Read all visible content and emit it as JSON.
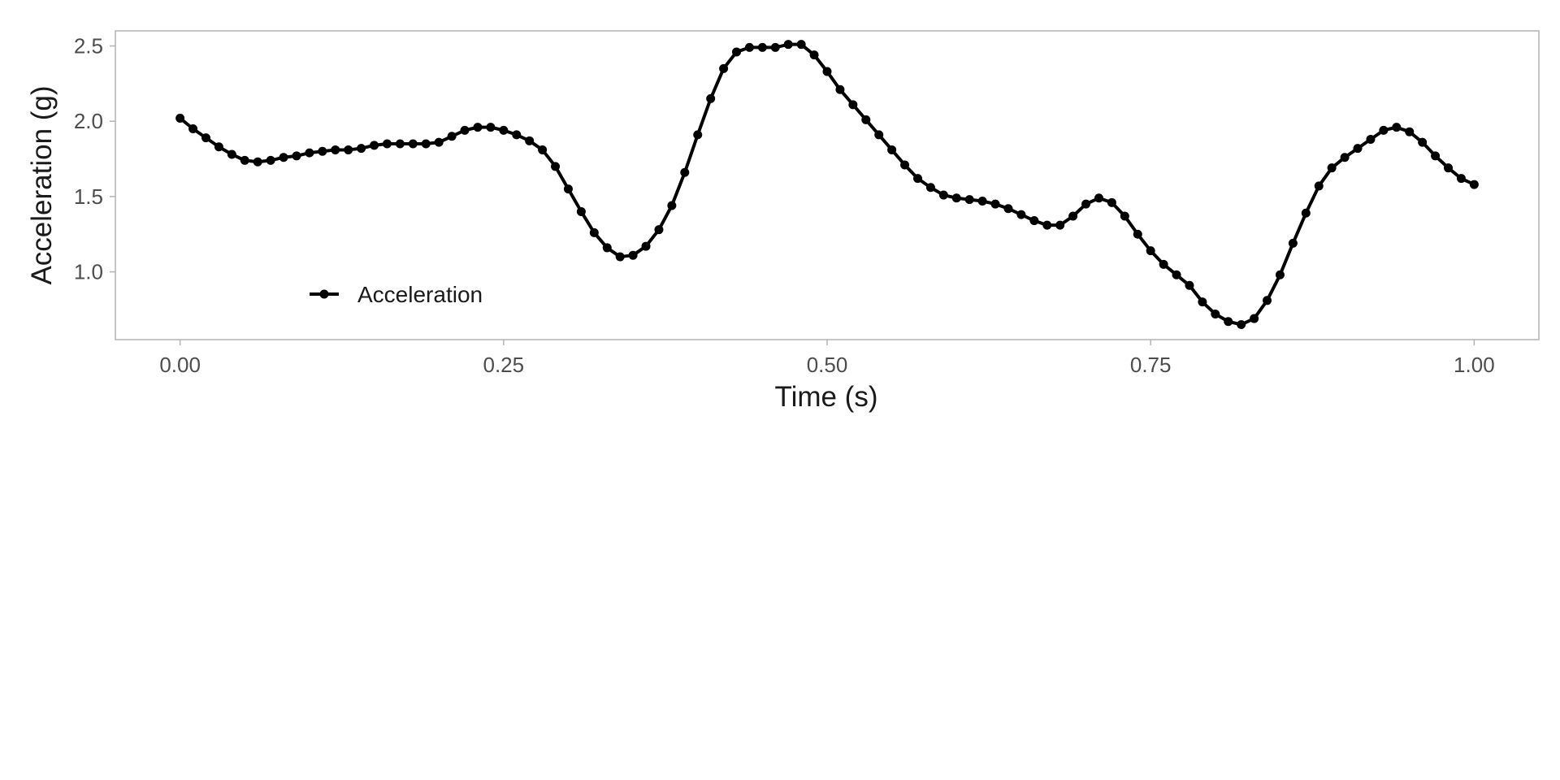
{
  "chart_data": {
    "type": "line",
    "title": "",
    "xlabel": "Time (s)",
    "ylabel": "Acceleration (g)",
    "xlim": [
      -0.05,
      1.05
    ],
    "ylim": [
      0.55,
      2.6
    ],
    "x_ticks": [
      "0.00",
      "0.25",
      "0.50",
      "0.75",
      "1.00"
    ],
    "x_tick_values": [
      0,
      0.25,
      0.5,
      0.75,
      1.0
    ],
    "y_ticks": [
      "1.0",
      "1.5",
      "2.0",
      "2.5"
    ],
    "y_tick_values": [
      1.0,
      1.5,
      2.0,
      2.5
    ],
    "grid": false,
    "legend_position": "bottom-left inside",
    "series": [
      {
        "name": "Acceleration",
        "color": "#000000",
        "marker": "circle",
        "x": [
          0.0,
          0.01,
          0.02,
          0.03,
          0.04,
          0.05,
          0.06,
          0.07,
          0.08,
          0.09,
          0.1,
          0.11,
          0.12,
          0.13,
          0.14,
          0.15,
          0.16,
          0.17,
          0.18,
          0.19,
          0.2,
          0.21,
          0.22,
          0.23,
          0.24,
          0.25,
          0.26,
          0.27,
          0.28,
          0.29,
          0.3,
          0.31,
          0.32,
          0.33,
          0.34,
          0.35,
          0.36,
          0.37,
          0.38,
          0.39,
          0.4,
          0.41,
          0.42,
          0.43,
          0.44,
          0.45,
          0.46,
          0.47,
          0.48,
          0.49,
          0.5,
          0.51,
          0.52,
          0.53,
          0.54,
          0.55,
          0.56,
          0.57,
          0.58,
          0.59,
          0.6,
          0.61,
          0.62,
          0.63,
          0.64,
          0.65,
          0.66,
          0.67,
          0.68,
          0.69,
          0.7,
          0.71,
          0.72,
          0.73,
          0.74,
          0.75,
          0.76,
          0.77,
          0.78,
          0.79,
          0.8,
          0.81,
          0.82,
          0.83,
          0.84,
          0.85,
          0.86,
          0.87,
          0.88,
          0.89,
          0.9,
          0.91,
          0.92,
          0.93,
          0.94,
          0.95,
          0.96,
          0.97,
          0.98,
          0.99,
          1.0
        ],
        "y": [
          2.02,
          1.95,
          1.89,
          1.83,
          1.78,
          1.74,
          1.73,
          1.74,
          1.76,
          1.77,
          1.79,
          1.8,
          1.81,
          1.81,
          1.82,
          1.84,
          1.85,
          1.85,
          1.85,
          1.85,
          1.86,
          1.9,
          1.94,
          1.96,
          1.96,
          1.94,
          1.91,
          1.87,
          1.81,
          1.7,
          1.55,
          1.4,
          1.26,
          1.16,
          1.1,
          1.11,
          1.17,
          1.28,
          1.44,
          1.66,
          1.91,
          2.15,
          2.35,
          2.46,
          2.49,
          2.49,
          2.49,
          2.51,
          2.51,
          2.44,
          2.33,
          2.21,
          2.11,
          2.01,
          1.91,
          1.81,
          1.71,
          1.62,
          1.56,
          1.51,
          1.49,
          1.48,
          1.47,
          1.45,
          1.42,
          1.38,
          1.34,
          1.31,
          1.31,
          1.37,
          1.45,
          1.49,
          1.46,
          1.37,
          1.25,
          1.14,
          1.05,
          0.98,
          0.91,
          0.8,
          0.72,
          0.67,
          0.65,
          0.69,
          0.81,
          0.98,
          1.19,
          1.39,
          1.57,
          1.69,
          1.76,
          1.82,
          1.88,
          1.94,
          1.96,
          1.93,
          1.86,
          1.77,
          1.69,
          1.62,
          1.58
        ]
      }
    ]
  }
}
